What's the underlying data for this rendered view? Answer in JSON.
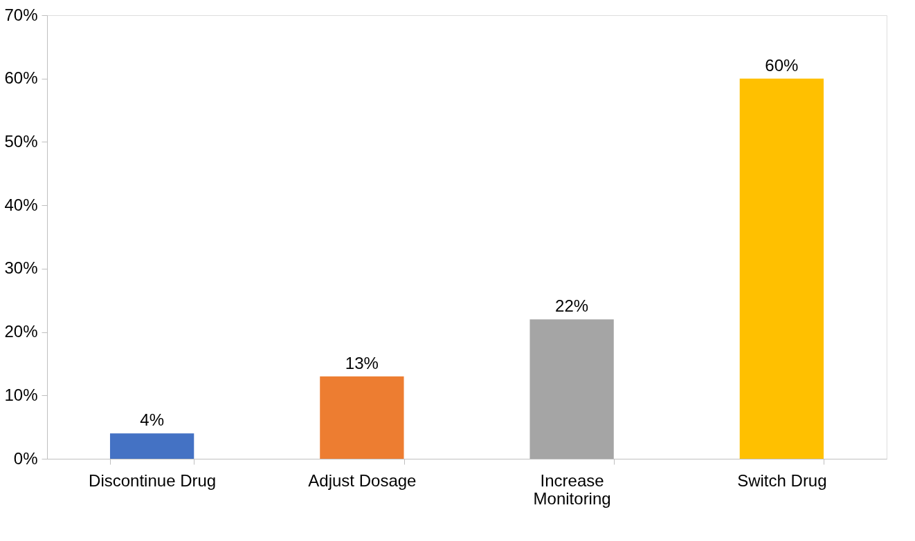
{
  "chart_data": {
    "type": "bar",
    "categories": [
      "Discontinue Drug",
      "Adjust Dosage",
      "Increase Monitoring",
      "Switch Drug"
    ],
    "values": [
      4,
      13,
      22,
      60
    ],
    "colors": [
      "#4472c4",
      "#ed7d31",
      "#a5a5a5",
      "#ffc000"
    ],
    "value_labels": [
      "4%",
      "13%",
      "22%",
      "60%"
    ],
    "ylim": [
      0,
      70
    ],
    "yticks": [
      {
        "value": 0,
        "label": "0%"
      },
      {
        "value": 10,
        "label": "10%"
      },
      {
        "value": 20,
        "label": "20%"
      },
      {
        "value": 30,
        "label": "30%"
      },
      {
        "value": 40,
        "label": "40%"
      },
      {
        "value": 50,
        "label": "50%"
      },
      {
        "value": 60,
        "label": "60%"
      },
      {
        "value": 70,
        "label": "70%"
      }
    ],
    "grid": false,
    "legend": false
  }
}
